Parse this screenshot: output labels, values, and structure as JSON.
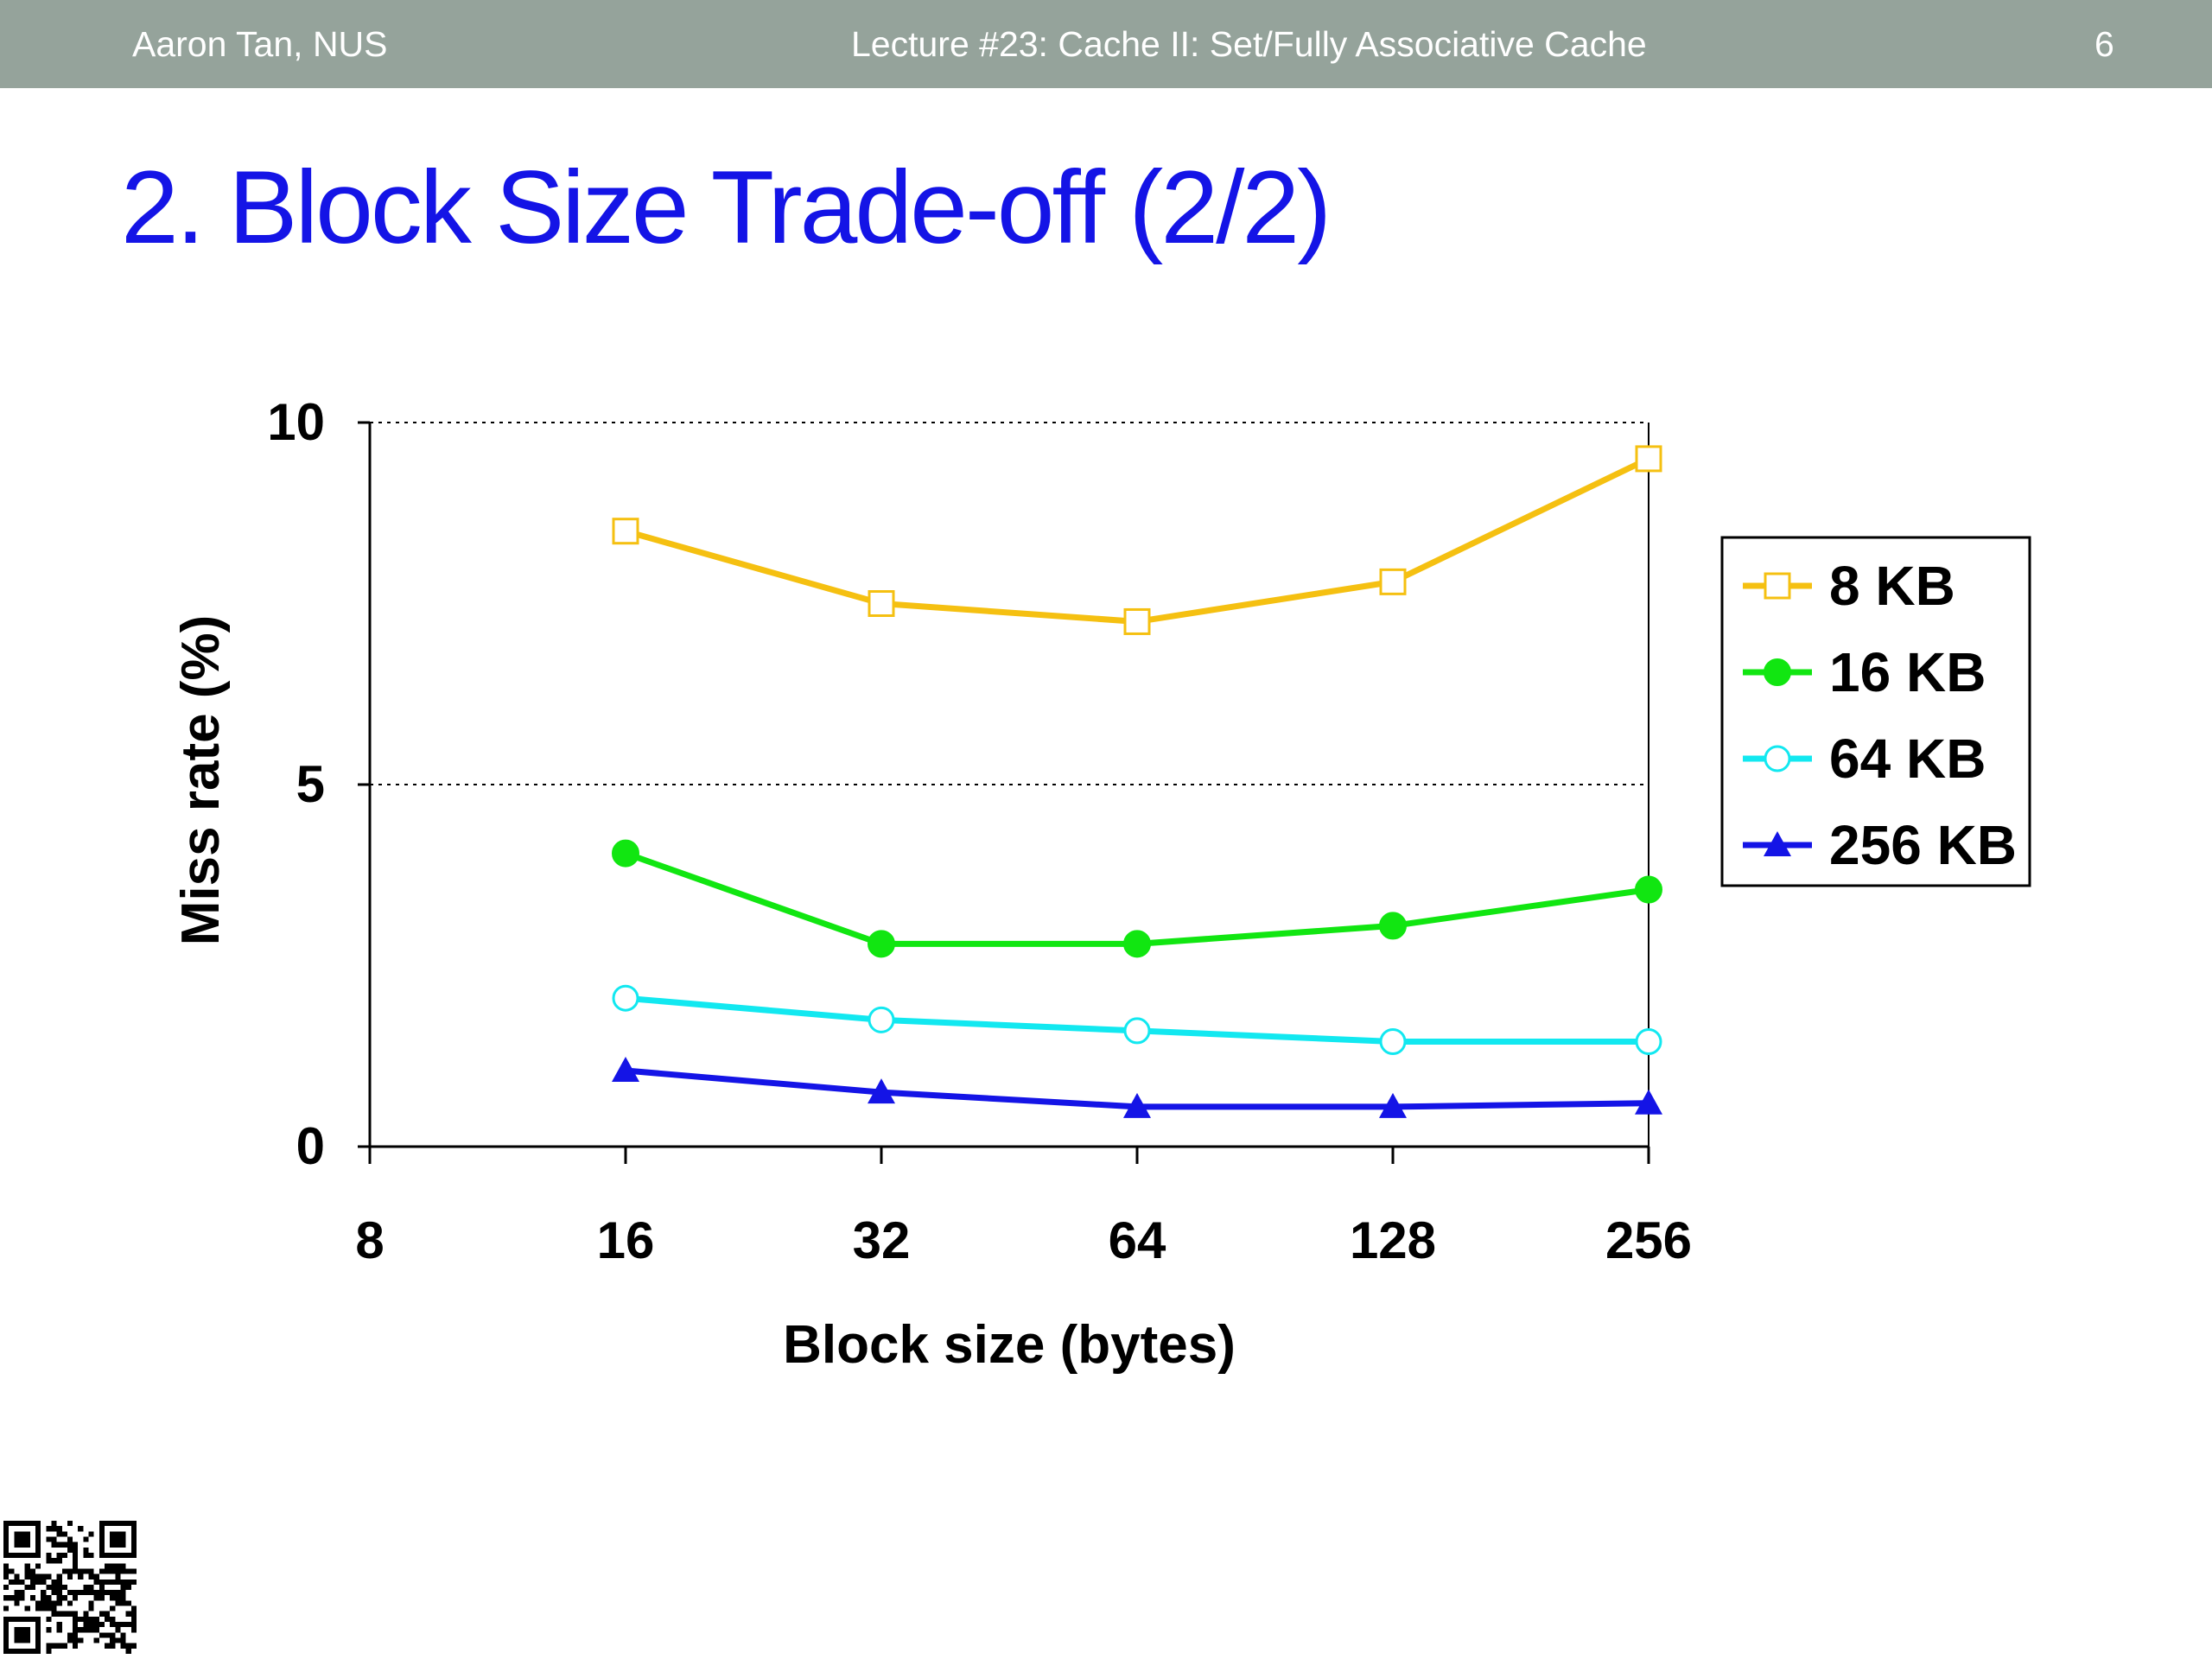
{
  "header": {
    "author": "Aaron Tan, NUS",
    "lecture": "Lecture #23: Cache II: Set/Fully Associative Cache",
    "page_number": "6"
  },
  "slide": {
    "title": "2. Block Size Trade-off (2/2)"
  },
  "colors": {
    "header_bg": "#95a39b",
    "title": "#1414e6"
  },
  "chart_data": {
    "type": "line",
    "xlabel": "Block size (bytes)",
    "ylabel": "Miss rate (%)",
    "x_scale": "log2",
    "x_ticks": [
      8,
      16,
      32,
      64,
      128,
      256
    ],
    "y_ticks": [
      0,
      5,
      10
    ],
    "ylim": [
      0,
      10
    ],
    "xlim": [
      8,
      256
    ],
    "grid": "dotted horizontal at y=5 and y=10",
    "legend_position": "right",
    "x": [
      16,
      32,
      64,
      128,
      256
    ],
    "series": [
      {
        "name": "8 KB",
        "color": "#f5c011",
        "marker": "open-square",
        "values": [
          8.5,
          7.5,
          7.25,
          7.8,
          9.5
        ]
      },
      {
        "name": "16 KB",
        "color": "#11e611",
        "marker": "filled-circle",
        "values": [
          4.05,
          2.8,
          2.8,
          3.05,
          3.55
        ]
      },
      {
        "name": "64 KB",
        "color": "#12e8f0",
        "marker": "open-circle",
        "values": [
          2.05,
          1.75,
          1.6,
          1.45,
          1.45
        ]
      },
      {
        "name": "256 KB",
        "color": "#1414e6",
        "marker": "filled-triangle",
        "values": [
          1.05,
          0.75,
          0.55,
          0.55,
          0.6
        ]
      }
    ]
  }
}
